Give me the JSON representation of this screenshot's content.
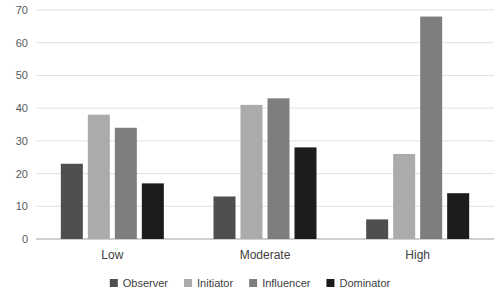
{
  "chart_data": {
    "type": "bar",
    "categories": [
      "Low",
      "Moderate",
      "High"
    ],
    "series": [
      {
        "name": "Observer",
        "color": "#4f4f4f",
        "values": [
          23,
          13,
          6
        ]
      },
      {
        "name": "Initiator",
        "color": "#ababab",
        "values": [
          38,
          41,
          26
        ]
      },
      {
        "name": "Influencer",
        "color": "#7e7e7e",
        "values": [
          34,
          43,
          68
        ]
      },
      {
        "name": "Dominator",
        "color": "#1c1c1c",
        "values": [
          17,
          28,
          14
        ]
      }
    ],
    "ylim": [
      0,
      70
    ],
    "yticks": [
      0,
      10,
      20,
      30,
      40,
      50,
      60,
      70
    ],
    "grid": true,
    "legend": "bottom"
  }
}
